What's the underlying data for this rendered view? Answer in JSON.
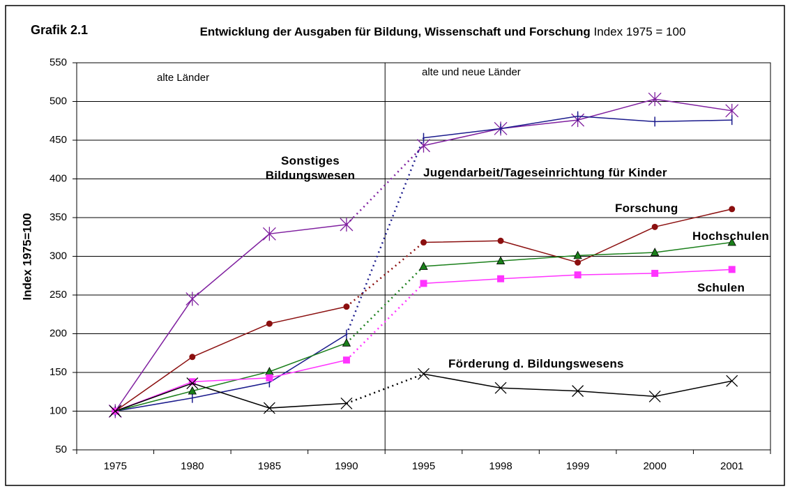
{
  "chart_data": {
    "type": "line",
    "figure_label": "Grafik 2.1",
    "title": "Entwicklung der Ausgaben für Bildung, Wissenschaft und Forschung",
    "subtitle": "Index 1975 = 100",
    "y_label": "Index 1975=100",
    "categories": [
      "1975",
      "1980",
      "1985",
      "1990",
      "1995",
      "1998",
      "1999",
      "2000",
      "2001"
    ],
    "split_after": "1990",
    "region_labels": [
      "alte Länder",
      "alte und neue Länder"
    ],
    "ylim": [
      50,
      550
    ],
    "yticks": [
      50,
      100,
      150,
      200,
      250,
      300,
      350,
      400,
      450,
      500,
      550
    ],
    "grid": true,
    "series": [
      {
        "name": "Sonstiges Bildungswesen",
        "color": "#7f1f9f",
        "marker": "asterisk",
        "values": [
          100,
          245,
          329,
          341,
          443,
          465,
          476,
          503,
          488
        ]
      },
      {
        "name": "Jugendarbeit/Tageseinrichtung für Kinder",
        "color": "#1a1a8c",
        "marker": "tick",
        "values": [
          100,
          117,
          137,
          199,
          453,
          465,
          481,
          474,
          476
        ]
      },
      {
        "name": "Forschung",
        "color": "#8b0f0f",
        "marker": "circle",
        "values": [
          100,
          170,
          213,
          235,
          318,
          320,
          292,
          338,
          361
        ]
      },
      {
        "name": "Hochschulen",
        "color": "#1a7f1a",
        "marker": "triangle",
        "values": [
          100,
          126,
          151,
          188,
          287,
          294,
          301,
          305,
          318
        ]
      },
      {
        "name": "Schulen",
        "color": "#ff33ff",
        "marker": "square",
        "values": [
          100,
          138,
          143,
          166,
          265,
          271,
          276,
          278,
          283
        ]
      },
      {
        "name": "Förderung d. Bildungswesens",
        "color": "#000000",
        "marker": "x",
        "values": [
          100,
          136,
          104,
          110,
          148,
          130,
          126,
          119,
          139
        ]
      }
    ]
  }
}
